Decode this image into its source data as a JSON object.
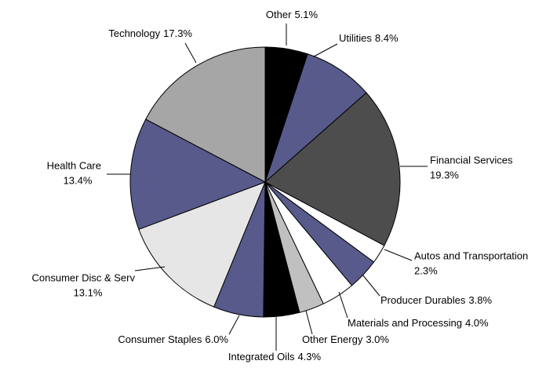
{
  "chart_data": {
    "type": "pie",
    "categories": [
      "Other",
      "Utilities",
      "Financial Services",
      "Autos and Transportation",
      "Producer Durables",
      "Materials and Processing",
      "Other Energy",
      "Integrated Oils",
      "Consumer Staples",
      "Consumer Disc & Serv",
      "Health Care",
      "Technology"
    ],
    "values": [
      5.1,
      8.4,
      19.3,
      2.3,
      3.8,
      4.0,
      3.0,
      4.3,
      6.0,
      13.1,
      13.4,
      17.3
    ],
    "value_labels": [
      "5.1%",
      "8.4%",
      "19.3%",
      "2.3%",
      "3.8%",
      "4.0%",
      "3.0%",
      "4.3%",
      "6.0%",
      "13.1%",
      "13.4%",
      "17.3%"
    ],
    "colors": [
      "#000000",
      "#575a8a",
      "#4d4d4d",
      "#ffffff",
      "#575a8a",
      "#ffffff",
      "#c0c0c0",
      "#000000",
      "#575a8a",
      "#e6e6e6",
      "#575a8a",
      "#a6a6a6"
    ]
  }
}
